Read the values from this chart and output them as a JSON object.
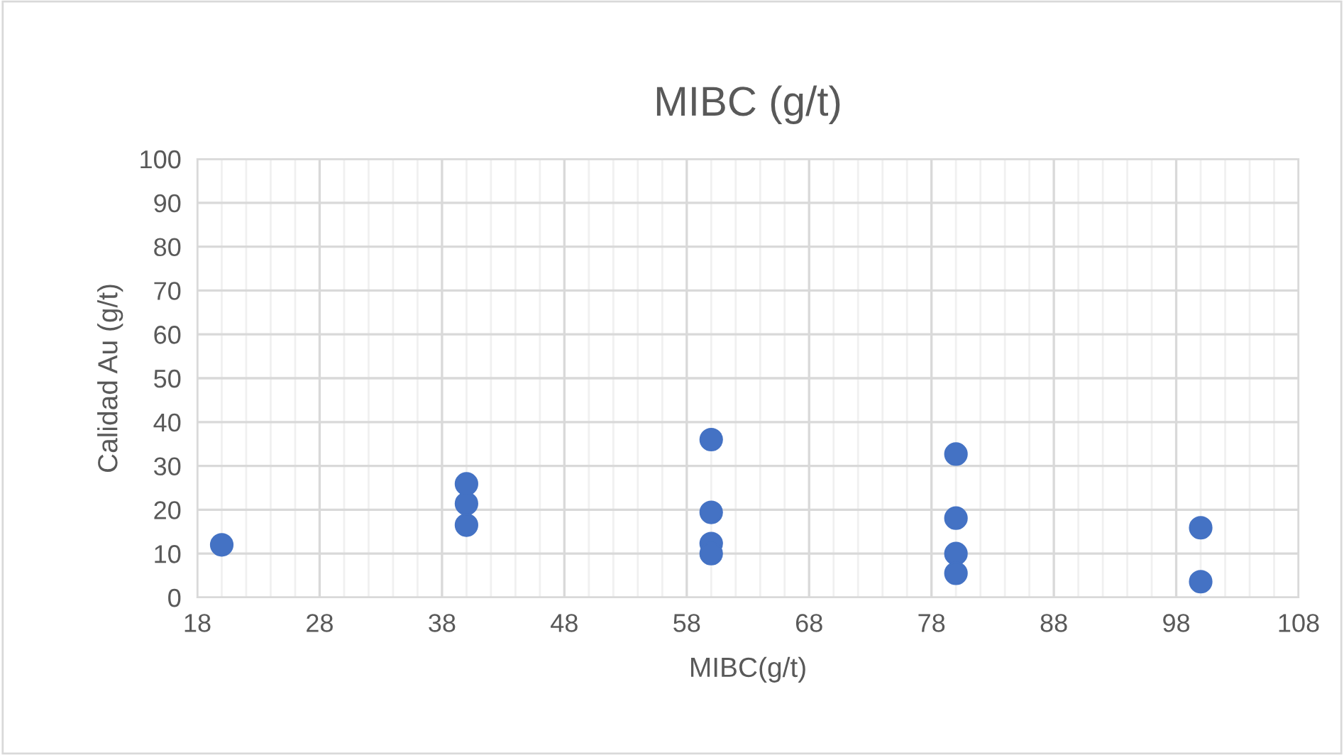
{
  "chart_data": {
    "type": "scatter",
    "title": "MIBC (g/t)",
    "xlabel": "MIBC(g/t)",
    "ylabel": "Calidad Au (g/t)",
    "x": [
      20,
      40,
      40,
      40,
      60,
      60,
      60,
      60,
      80,
      80,
      80,
      80,
      100,
      100
    ],
    "series": [
      {
        "color": "#4472c4",
        "values": [
          12.0,
          25.9,
          21.4,
          16.5,
          36.0,
          19.4,
          12.3,
          10.0,
          32.7,
          18.1,
          10.0,
          5.5,
          15.9,
          3.6
        ]
      }
    ],
    "xlim": [
      18,
      108
    ],
    "xticks": [
      18,
      28,
      38,
      48,
      58,
      68,
      78,
      88,
      98,
      108
    ],
    "ylim": [
      0,
      100
    ],
    "yticks": [
      0,
      10,
      20,
      30,
      40,
      50,
      60,
      70,
      80,
      90,
      100
    ],
    "grid": true,
    "marker": "circle",
    "legend": false
  }
}
